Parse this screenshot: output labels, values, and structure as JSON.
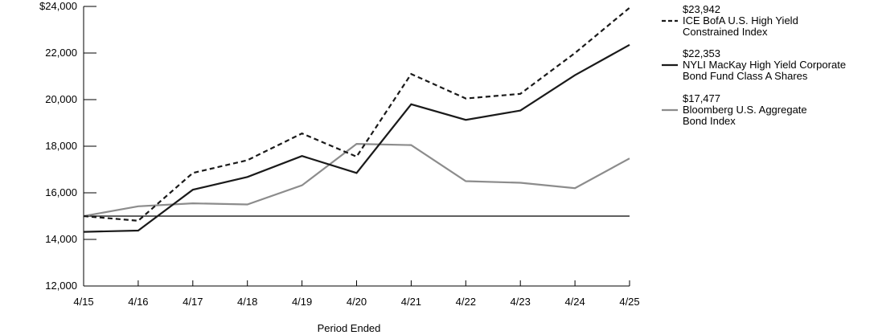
{
  "chart_data": {
    "type": "line",
    "xlabel": "Period Ended",
    "ylabel": "",
    "categories": [
      "4/15",
      "4/16",
      "4/17",
      "4/18",
      "4/19",
      "4/20",
      "4/21",
      "4/22",
      "4/23",
      "4/24",
      "4/25"
    ],
    "ylim": [
      12000,
      24000
    ],
    "yticks": [
      12000,
      14000,
      16000,
      18000,
      20000,
      22000,
      24000
    ],
    "ytick_labels": [
      "12,000",
      "14,000",
      "16,000",
      "18,000",
      "20,000",
      "22,000",
      "$24,000"
    ],
    "reference_line": 15000,
    "grid": false,
    "legend_position": "right",
    "series": [
      {
        "name": "ICE BofA U.S. High Yield Constrained Index",
        "legend_lines": [
          "ICE BofA U.S. High Yield",
          "Constrained Index"
        ],
        "ending_value": "$23,942",
        "style": "dashed",
        "color": "#1a1a1a",
        "values": [
          15000,
          14800,
          16850,
          17400,
          18550,
          17550,
          21100,
          20050,
          20250,
          22000,
          23942
        ]
      },
      {
        "name": "NYLI MacKay High Yield Corporate Bond Fund Class A Shares",
        "legend_lines": [
          "NYLI MacKay High Yield Corporate",
          "Bond Fund Class A Shares"
        ],
        "ending_value": "$22,353",
        "style": "solid",
        "color": "#1a1a1a",
        "values": [
          14325,
          14380,
          16130,
          16680,
          17580,
          16850,
          19800,
          19130,
          19530,
          21050,
          22353
        ]
      },
      {
        "name": "Bloomberg U.S. Aggregate Bond Index",
        "legend_lines": [
          "Bloomberg U.S. Aggregate",
          "Bond Index"
        ],
        "ending_value": "$17,477",
        "style": "solid",
        "color": "#8c8c8c",
        "values": [
          15000,
          15420,
          15550,
          15500,
          16320,
          18100,
          18050,
          16500,
          16430,
          16200,
          17477
        ]
      }
    ]
  }
}
